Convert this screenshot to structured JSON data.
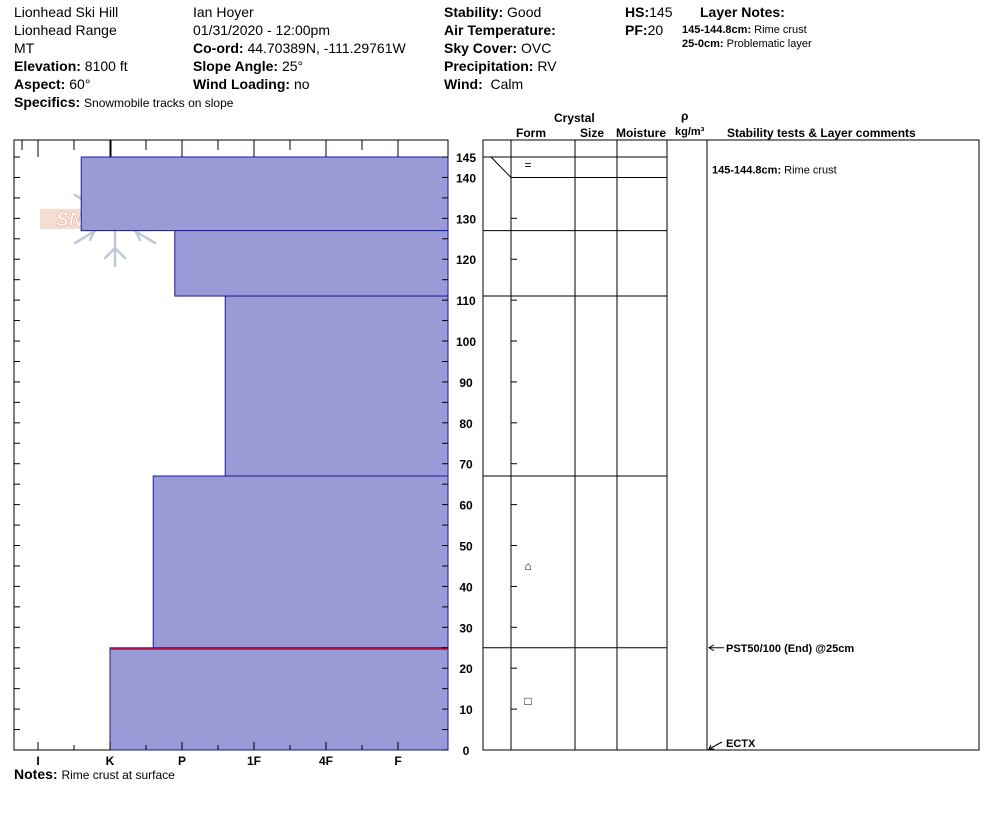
{
  "header": {
    "location": "Lionhead Ski Hill",
    "range": "Lionhead Range",
    "state": "MT",
    "elevation_label": "Elevation:",
    "elevation": "8100 ft",
    "aspect_label": "Aspect:",
    "aspect": "60°",
    "observer": "Ian Hoyer",
    "datetime": "01/31/2020 - 12:00pm",
    "coord_label": "Co-ord:",
    "coord": "44.70389N, -111.29761W",
    "slope_label": "Slope Angle:",
    "slope": "25°",
    "wind_loading_label": "Wind Loading:",
    "wind_loading": "no",
    "stability_label": "Stability:",
    "stability": "Good",
    "air_temp_label": "Air Temperature:",
    "air_temp": "",
    "sky_label": "Sky Cover:",
    "sky": "OVC",
    "precip_label": "Precipitation:",
    "precip": "RV",
    "wind_label": "Wind:",
    "wind": "Calm",
    "hs_label": "HS:",
    "hs": "145",
    "pf_label": "PF:",
    "pf": "20",
    "layer_notes_label": "Layer Notes:",
    "layer_notes": [
      {
        "range": "145-144.8cm:",
        "text": "Rime crust"
      },
      {
        "range": "25-0cm:",
        "text": "Problematic layer"
      }
    ],
    "specifics_label": "Specifics:",
    "specifics": "Snowmobile tracks on slope"
  },
  "logo": {
    "text": "SNOWPILOT"
  },
  "columns": {
    "crystal": "Crystal",
    "form": "Form",
    "size": "Size",
    "moisture": "Moisture",
    "rho": "ρ",
    "density_unit": "kg/m³",
    "comments": "Stability tests & Layer comments"
  },
  "footer": {
    "notes_label": "Notes:",
    "notes": "Rime crust at surface"
  },
  "chart_data": {
    "type": "snow-profile",
    "hardness_scale": [
      "I",
      "K",
      "P",
      "1F",
      "4F",
      "F"
    ],
    "depth_range": [
      0,
      145
    ],
    "depth_ticks": [
      145,
      140,
      130,
      120,
      110,
      100,
      90,
      80,
      70,
      60,
      50,
      40,
      30,
      20,
      10,
      0
    ],
    "layers": [
      {
        "top": 145,
        "bottom": 127,
        "hardness_index": 0.6
      },
      {
        "top": 127,
        "bottom": 111,
        "hardness_index": 1.9
      },
      {
        "top": 111,
        "bottom": 67,
        "hardness_index": 2.6
      },
      {
        "top": 67,
        "bottom": 25,
        "hardness_index": 1.6
      },
      {
        "top": 25,
        "bottom": 0,
        "hardness_index": 1.0
      }
    ],
    "layer_boundaries": [
      145,
      140,
      127,
      111,
      67,
      25
    ],
    "problem_layer_depth": 25,
    "grain_symbols": [
      {
        "depth": 143,
        "symbol": "="
      },
      {
        "depth": 45,
        "symbol": "⌂"
      },
      {
        "depth": 12,
        "symbol": "□"
      }
    ],
    "comments": [
      {
        "depth": 142,
        "range": "145-144.8cm:",
        "text": "Rime crust"
      }
    ],
    "tests": [
      {
        "depth": 25,
        "text": "PST50/100 (End) @25cm"
      },
      {
        "depth": 0,
        "text": "ECTX"
      }
    ]
  }
}
